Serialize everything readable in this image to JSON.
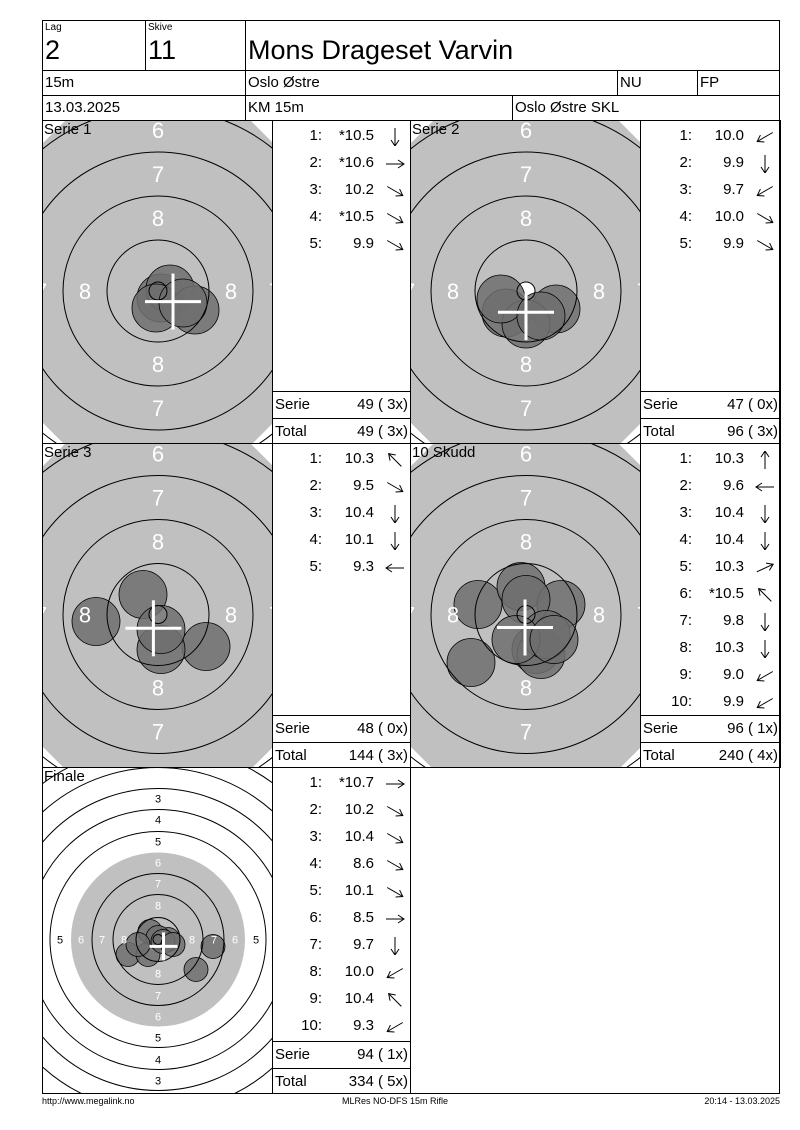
{
  "header": {
    "lag_label": "Lag",
    "lag": "2",
    "skive_label": "Skive",
    "skive": "11",
    "name": "Mons Drageset Varvin",
    "distance": "15m",
    "club": "Oslo Østre",
    "class": "NU",
    "discipline": "FP",
    "date": "13.03.2025",
    "event": "KM 15m",
    "team": "Oslo Østre SKL"
  },
  "labels": {
    "serie": "Serie",
    "total": "Total"
  },
  "panels": [
    {
      "title": "Serie 1",
      "target": "standard",
      "shots": [
        {
          "n": "1:",
          "v": "*10.5",
          "dir": "down"
        },
        {
          "n": "2:",
          "v": "*10.6",
          "dir": "right"
        },
        {
          "n": "3:",
          "v": "10.2",
          "dir": "down-right"
        },
        {
          "n": "4:",
          "v": "*10.5",
          "dir": "down-right"
        },
        {
          "n": "5:",
          "v": "9.9",
          "dir": "down-right"
        }
      ],
      "serie": "49 ( 3x)",
      "total": "49 ( 3x)"
    },
    {
      "title": "Serie 2",
      "target": "standard",
      "shots": [
        {
          "n": "1:",
          "v": "10.0",
          "dir": "down-left"
        },
        {
          "n": "2:",
          "v": "9.9",
          "dir": "down"
        },
        {
          "n": "3:",
          "v": "9.7",
          "dir": "down-left"
        },
        {
          "n": "4:",
          "v": "10.0",
          "dir": "down-right"
        },
        {
          "n": "5:",
          "v": "9.9",
          "dir": "down-right"
        }
      ],
      "serie": "47 ( 0x)",
      "total": "96 ( 3x)"
    },
    {
      "title": "Serie 3",
      "target": "standard",
      "shots": [
        {
          "n": "1:",
          "v": "10.3",
          "dir": "up-left"
        },
        {
          "n": "2:",
          "v": "9.5",
          "dir": "down-right"
        },
        {
          "n": "3:",
          "v": "10.4",
          "dir": "down"
        },
        {
          "n": "4:",
          "v": "10.1",
          "dir": "down"
        },
        {
          "n": "5:",
          "v": "9.3",
          "dir": "left"
        }
      ],
      "serie": "48 ( 0x)",
      "total": "144 ( 3x)"
    },
    {
      "title": "10 Skudd",
      "target": "standard",
      "shots": [
        {
          "n": "1:",
          "v": "10.3",
          "dir": "up"
        },
        {
          "n": "2:",
          "v": "9.6",
          "dir": "left"
        },
        {
          "n": "3:",
          "v": "10.4",
          "dir": "down"
        },
        {
          "n": "4:",
          "v": "10.4",
          "dir": "down"
        },
        {
          "n": "5:",
          "v": "10.3",
          "dir": "up-right"
        },
        {
          "n": "6:",
          "v": "*10.5",
          "dir": "up-left"
        },
        {
          "n": "7:",
          "v": "9.8",
          "dir": "down"
        },
        {
          "n": "8:",
          "v": "10.3",
          "dir": "down"
        },
        {
          "n": "9:",
          "v": "9.0",
          "dir": "down-left"
        },
        {
          "n": "10:",
          "v": "9.9",
          "dir": "down-left"
        }
      ],
      "serie": "96 ( 1x)",
      "total": "240 ( 4x)"
    },
    {
      "title": "Finale",
      "target": "finale",
      "shots": [
        {
          "n": "1:",
          "v": "*10.7",
          "dir": "right"
        },
        {
          "n": "2:",
          "v": "10.2",
          "dir": "down-right"
        },
        {
          "n": "3:",
          "v": "10.4",
          "dir": "down-right"
        },
        {
          "n": "4:",
          "v": "8.6",
          "dir": "down-right"
        },
        {
          "n": "5:",
          "v": "10.1",
          "dir": "down-right"
        },
        {
          "n": "6:",
          "v": "8.5",
          "dir": "right"
        },
        {
          "n": "7:",
          "v": "9.7",
          "dir": "down"
        },
        {
          "n": "8:",
          "v": "10.0",
          "dir": "down-left"
        },
        {
          "n": "9:",
          "v": "10.4",
          "dir": "up-left"
        },
        {
          "n": "10:",
          "v": "9.3",
          "dir": "down-left"
        }
      ],
      "serie": "94 ( 1x)",
      "total": "334 ( 5x)"
    }
  ],
  "target_labels": {
    "standard": [
      "8",
      "7",
      "6"
    ],
    "finale": [
      "8",
      "7",
      "6",
      "5",
      "4",
      "3"
    ]
  },
  "colors": {
    "target_gray": "#c0c0c0",
    "shot": "#6e6e6e"
  },
  "footer": {
    "left": "http://www.megalink.no",
    "center": "MLRes NO-DFS 15m Rifle",
    "right": "20:14 - 13.03.2025"
  }
}
